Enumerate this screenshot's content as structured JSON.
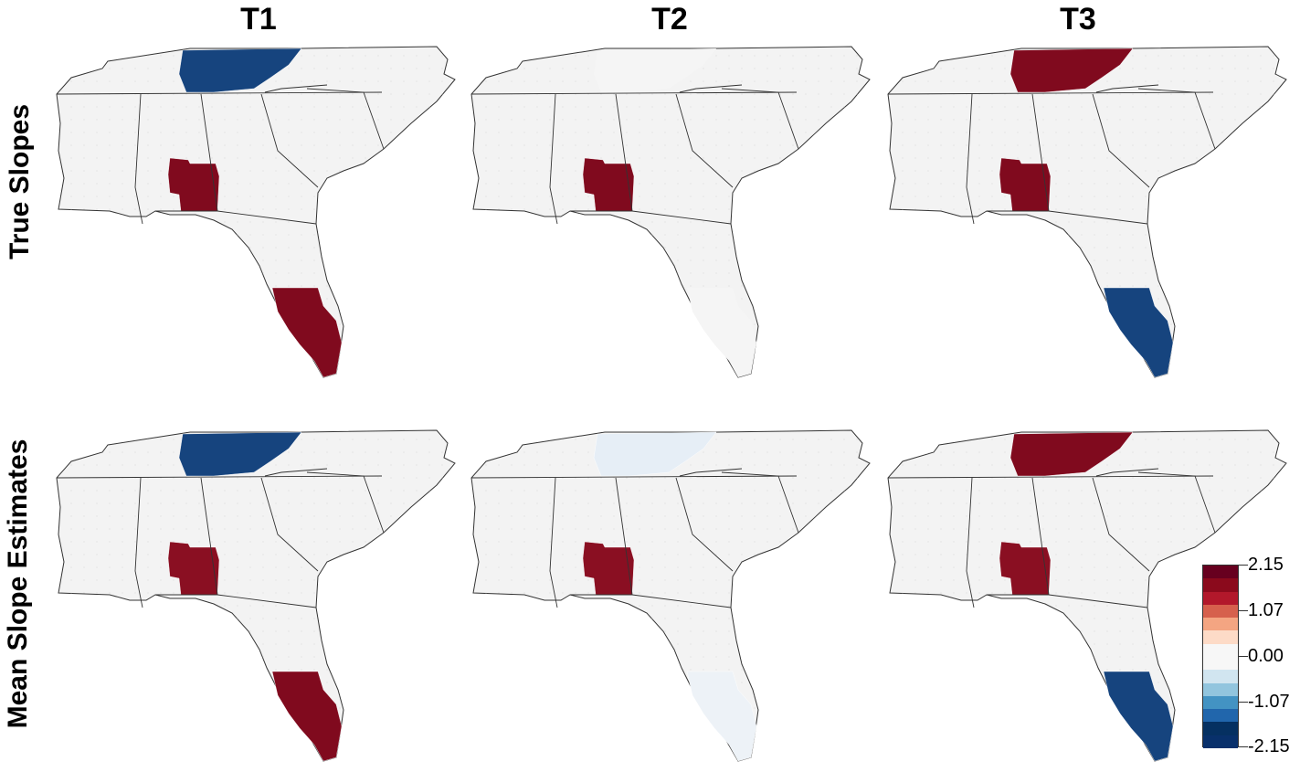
{
  "columns": [
    "T1",
    "T2",
    "T3"
  ],
  "rows": [
    "True Slopes",
    "Mean Slope Estimates"
  ],
  "legend": {
    "max_label": "2.15",
    "upper_mid_label": "1.07",
    "zero_label": "0.00",
    "lower_mid_label": "-1.07",
    "min_label": "-2.15",
    "colors": [
      "#67001f",
      "#8b0a1c",
      "#b2182b",
      "#d6604d",
      "#f4a582",
      "#fddbc7",
      "#f7f7f7",
      "#f7f7f7",
      "#d1e5f0",
      "#92c5de",
      "#4393c3",
      "#2166ac",
      "#053061",
      "#08306b"
    ]
  },
  "regions": {
    "tennessee": [
      {
        "value": -2.15,
        "color": "#16447e"
      },
      {
        "value": 0.0,
        "color": "#f5f5f5"
      },
      {
        "value": 2.15,
        "color": "#800a1e"
      },
      {
        "value": -2.15,
        "color": "#16447e"
      },
      {
        "value": -0.1,
        "color": "#e6eef6"
      },
      {
        "value": 2.15,
        "color": "#800a1e"
      }
    ],
    "alabama_georgia": [
      {
        "value": 2.15,
        "color": "#800a1e"
      },
      {
        "value": 2.15,
        "color": "#800a1e"
      },
      {
        "value": 2.15,
        "color": "#800a1e"
      },
      {
        "value": 2.0,
        "color": "#8a0f22"
      },
      {
        "value": 2.0,
        "color": "#8a0f22"
      },
      {
        "value": 2.0,
        "color": "#8a0f22"
      }
    ],
    "south_florida": [
      {
        "value": 2.15,
        "color": "#800a1e"
      },
      {
        "value": 0.0,
        "color": "#f5f5f5"
      },
      {
        "value": -2.15,
        "color": "#16447e"
      },
      {
        "value": 2.15,
        "color": "#800a1e"
      },
      {
        "value": -0.05,
        "color": "#edf2f7"
      },
      {
        "value": -2.15,
        "color": "#16447e"
      }
    ]
  }
}
